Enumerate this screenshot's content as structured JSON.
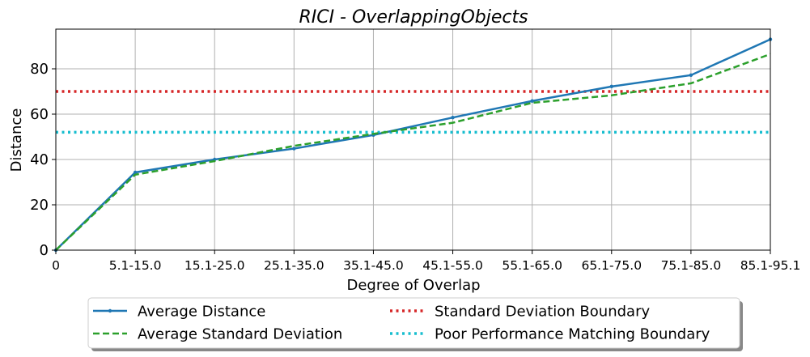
{
  "chart_data": {
    "type": "line",
    "title": "RICI - OverlappingObjects",
    "xlabel": "Degree of Overlap",
    "ylabel": "Distance",
    "categories": [
      "0",
      "5.1-15.0",
      "15.1-25.0",
      "25.1-35.0",
      "35.1-45.0",
      "45.1-55.0",
      "55.1-65.0",
      "65.1-75.0",
      "75.1-85.0",
      "85.1-95.1"
    ],
    "ylim": [
      0,
      97.5
    ],
    "yticks": [
      0,
      20,
      40,
      60,
      80
    ],
    "grid": true,
    "legend_position": "bottom-center",
    "series": [
      {
        "name": "Average Distance",
        "color": "#1f77b4",
        "style": "solid",
        "markers": true,
        "values": [
          0,
          34.3,
          40.0,
          44.8,
          50.8,
          58.5,
          65.8,
          72.2,
          77.2,
          93.0
        ]
      },
      {
        "name": "Average Standard Deviation",
        "color": "#2ca02c",
        "style": "dashed",
        "markers": false,
        "values": [
          0,
          33.3,
          39.3,
          46.0,
          51.3,
          56.2,
          65.0,
          68.3,
          73.6,
          86.5
        ]
      }
    ],
    "reference_lines": [
      {
        "name": "Standard Deviation Boundary",
        "value": 70,
        "color": "#d62728",
        "style": "dotted"
      },
      {
        "name": "Poor Performance Matching Boundary",
        "value": 52,
        "color": "#17becf",
        "style": "dotted"
      }
    ]
  }
}
